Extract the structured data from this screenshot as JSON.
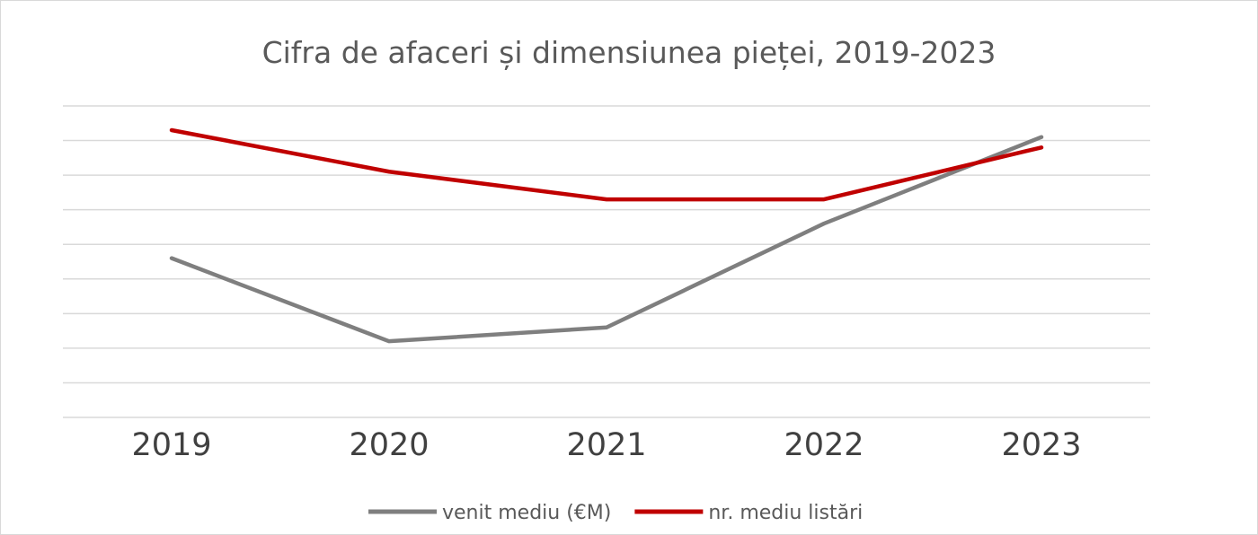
{
  "chart_data": {
    "type": "line",
    "title": "Cifra de afaceri și dimensiunea pieței, 2019-2023",
    "categories": [
      "2019",
      "2020",
      "2021",
      "2022",
      "2023"
    ],
    "ylim": [
      0,
      9
    ],
    "grid": true,
    "legend_position": "bottom",
    "series": [
      {
        "name": "venit mediu (€M)",
        "color": "#7f7f7f",
        "values": [
          4.6,
          2.2,
          2.6,
          5.6,
          8.1
        ]
      },
      {
        "name": "nr. mediu listări",
        "color": "#c00000",
        "values": [
          8.3,
          7.1,
          6.3,
          6.3,
          7.8
        ]
      }
    ]
  }
}
